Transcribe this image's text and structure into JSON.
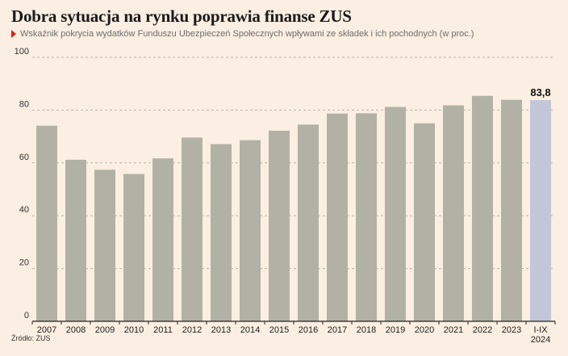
{
  "header": {
    "title": "Dobra sytuacja na rynku poprawia finanse ZUS",
    "subtitle": "Wskaźnik pokrycia wydatków Funduszu Ubezpieczeń Społecznych wpływami ze składek i ich pochodnych (w proc.)"
  },
  "footer": {
    "source": "Źródło: ZUS"
  },
  "chart_data": {
    "type": "bar",
    "categories": [
      "2007",
      "2008",
      "2009",
      "2010",
      "2011",
      "2012",
      "2013",
      "2014",
      "2015",
      "2016",
      "2017",
      "2018",
      "2019",
      "2020",
      "2021",
      "2022",
      "2023",
      "I-IX\n2024"
    ],
    "values": [
      74.1,
      61.2,
      57.4,
      55.8,
      61.7,
      69.6,
      67.1,
      68.6,
      72.2,
      74.5,
      78.7,
      78.8,
      81.2,
      75.0,
      81.8,
      85.4,
      83.9,
      83.8
    ],
    "highlight_index": 17,
    "highlight_label": "83,8",
    "colors": {
      "bar": "#b2b1a6",
      "highlight": "#c2c7d8",
      "grid": "#b9b3aa"
    },
    "yticks": [
      "0",
      "20",
      "40",
      "60",
      "80",
      "100"
    ],
    "ylim": [
      0,
      100
    ],
    "grid": true
  }
}
